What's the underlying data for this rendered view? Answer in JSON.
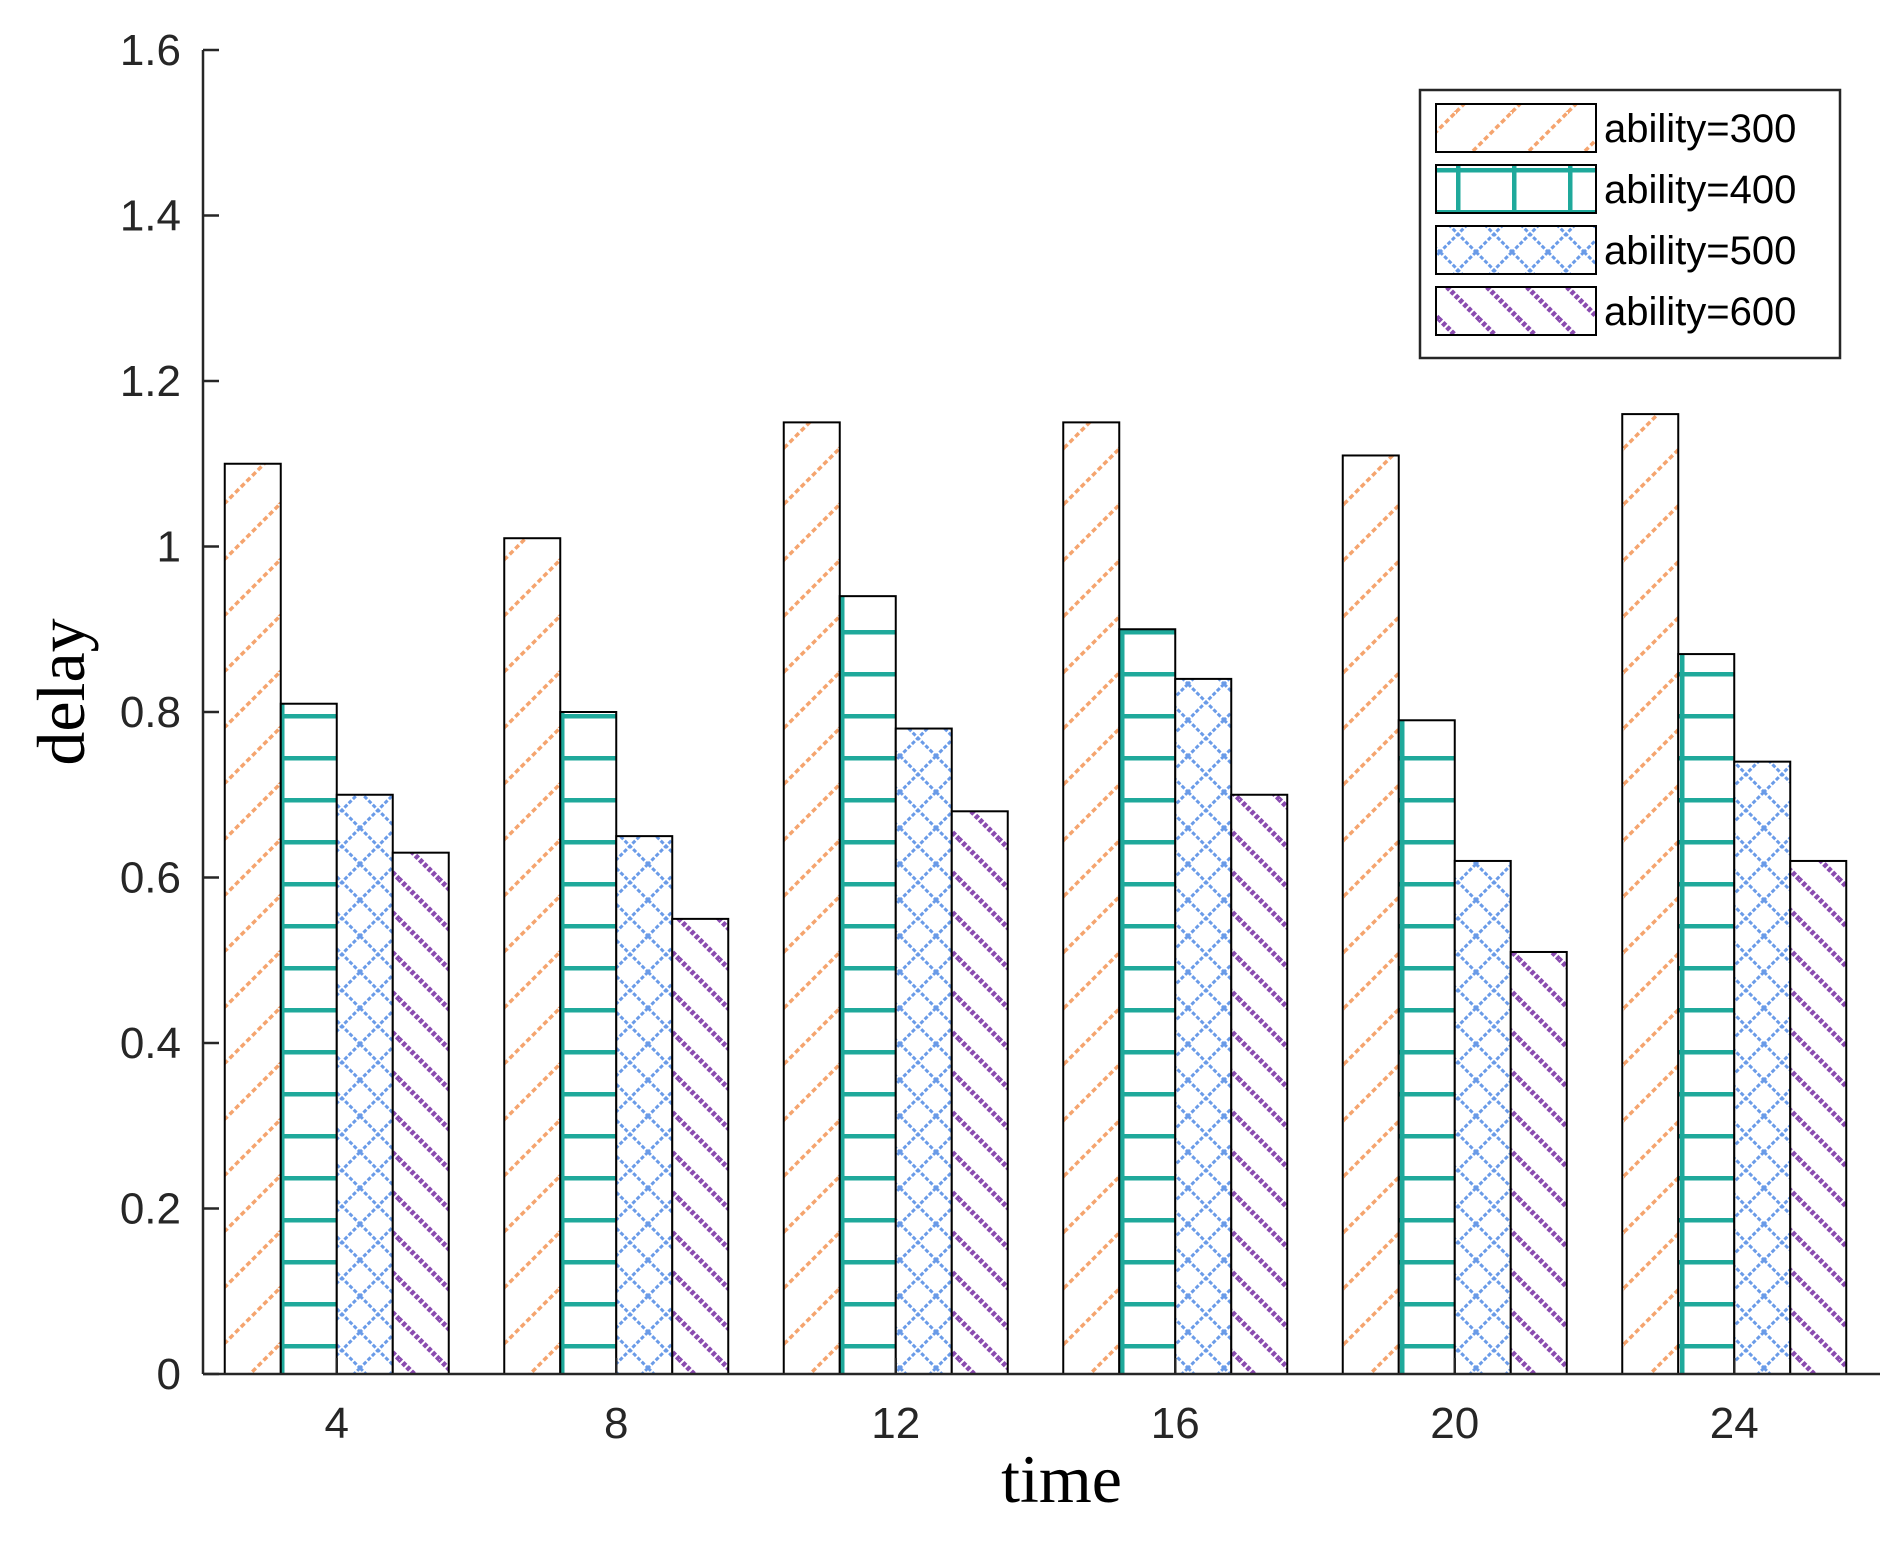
{
  "chart_data": {
    "type": "bar",
    "title": "",
    "xlabel": "time",
    "ylabel": "delay",
    "categories": [
      "4",
      "8",
      "12",
      "16",
      "20",
      "24"
    ],
    "ylim": [
      0,
      1.6
    ],
    "yticks": [
      "0",
      "0.2",
      "0.4",
      "0.6",
      "0.8",
      "1",
      "1.2",
      "1.4",
      "1.6"
    ],
    "grid": false,
    "legend_position": "top-right",
    "series": [
      {
        "name": "ability=300",
        "values": [
          1.1,
          1.01,
          1.15,
          1.15,
          1.11,
          1.16
        ],
        "color": "#F5A46E",
        "pattern": "diagonal-up"
      },
      {
        "name": "ability=400",
        "values": [
          0.81,
          0.8,
          0.94,
          0.9,
          0.79,
          0.87
        ],
        "color": "#1FA99B",
        "pattern": "grid"
      },
      {
        "name": "ability=500",
        "values": [
          0.7,
          0.65,
          0.78,
          0.84,
          0.62,
          0.74
        ],
        "color": "#6A9BE8",
        "pattern": "crosshatch"
      },
      {
        "name": "ability=600",
        "values": [
          0.63,
          0.55,
          0.68,
          0.7,
          0.51,
          0.62
        ],
        "color": "#8A4BB0",
        "pattern": "diagonal-down"
      }
    ]
  }
}
